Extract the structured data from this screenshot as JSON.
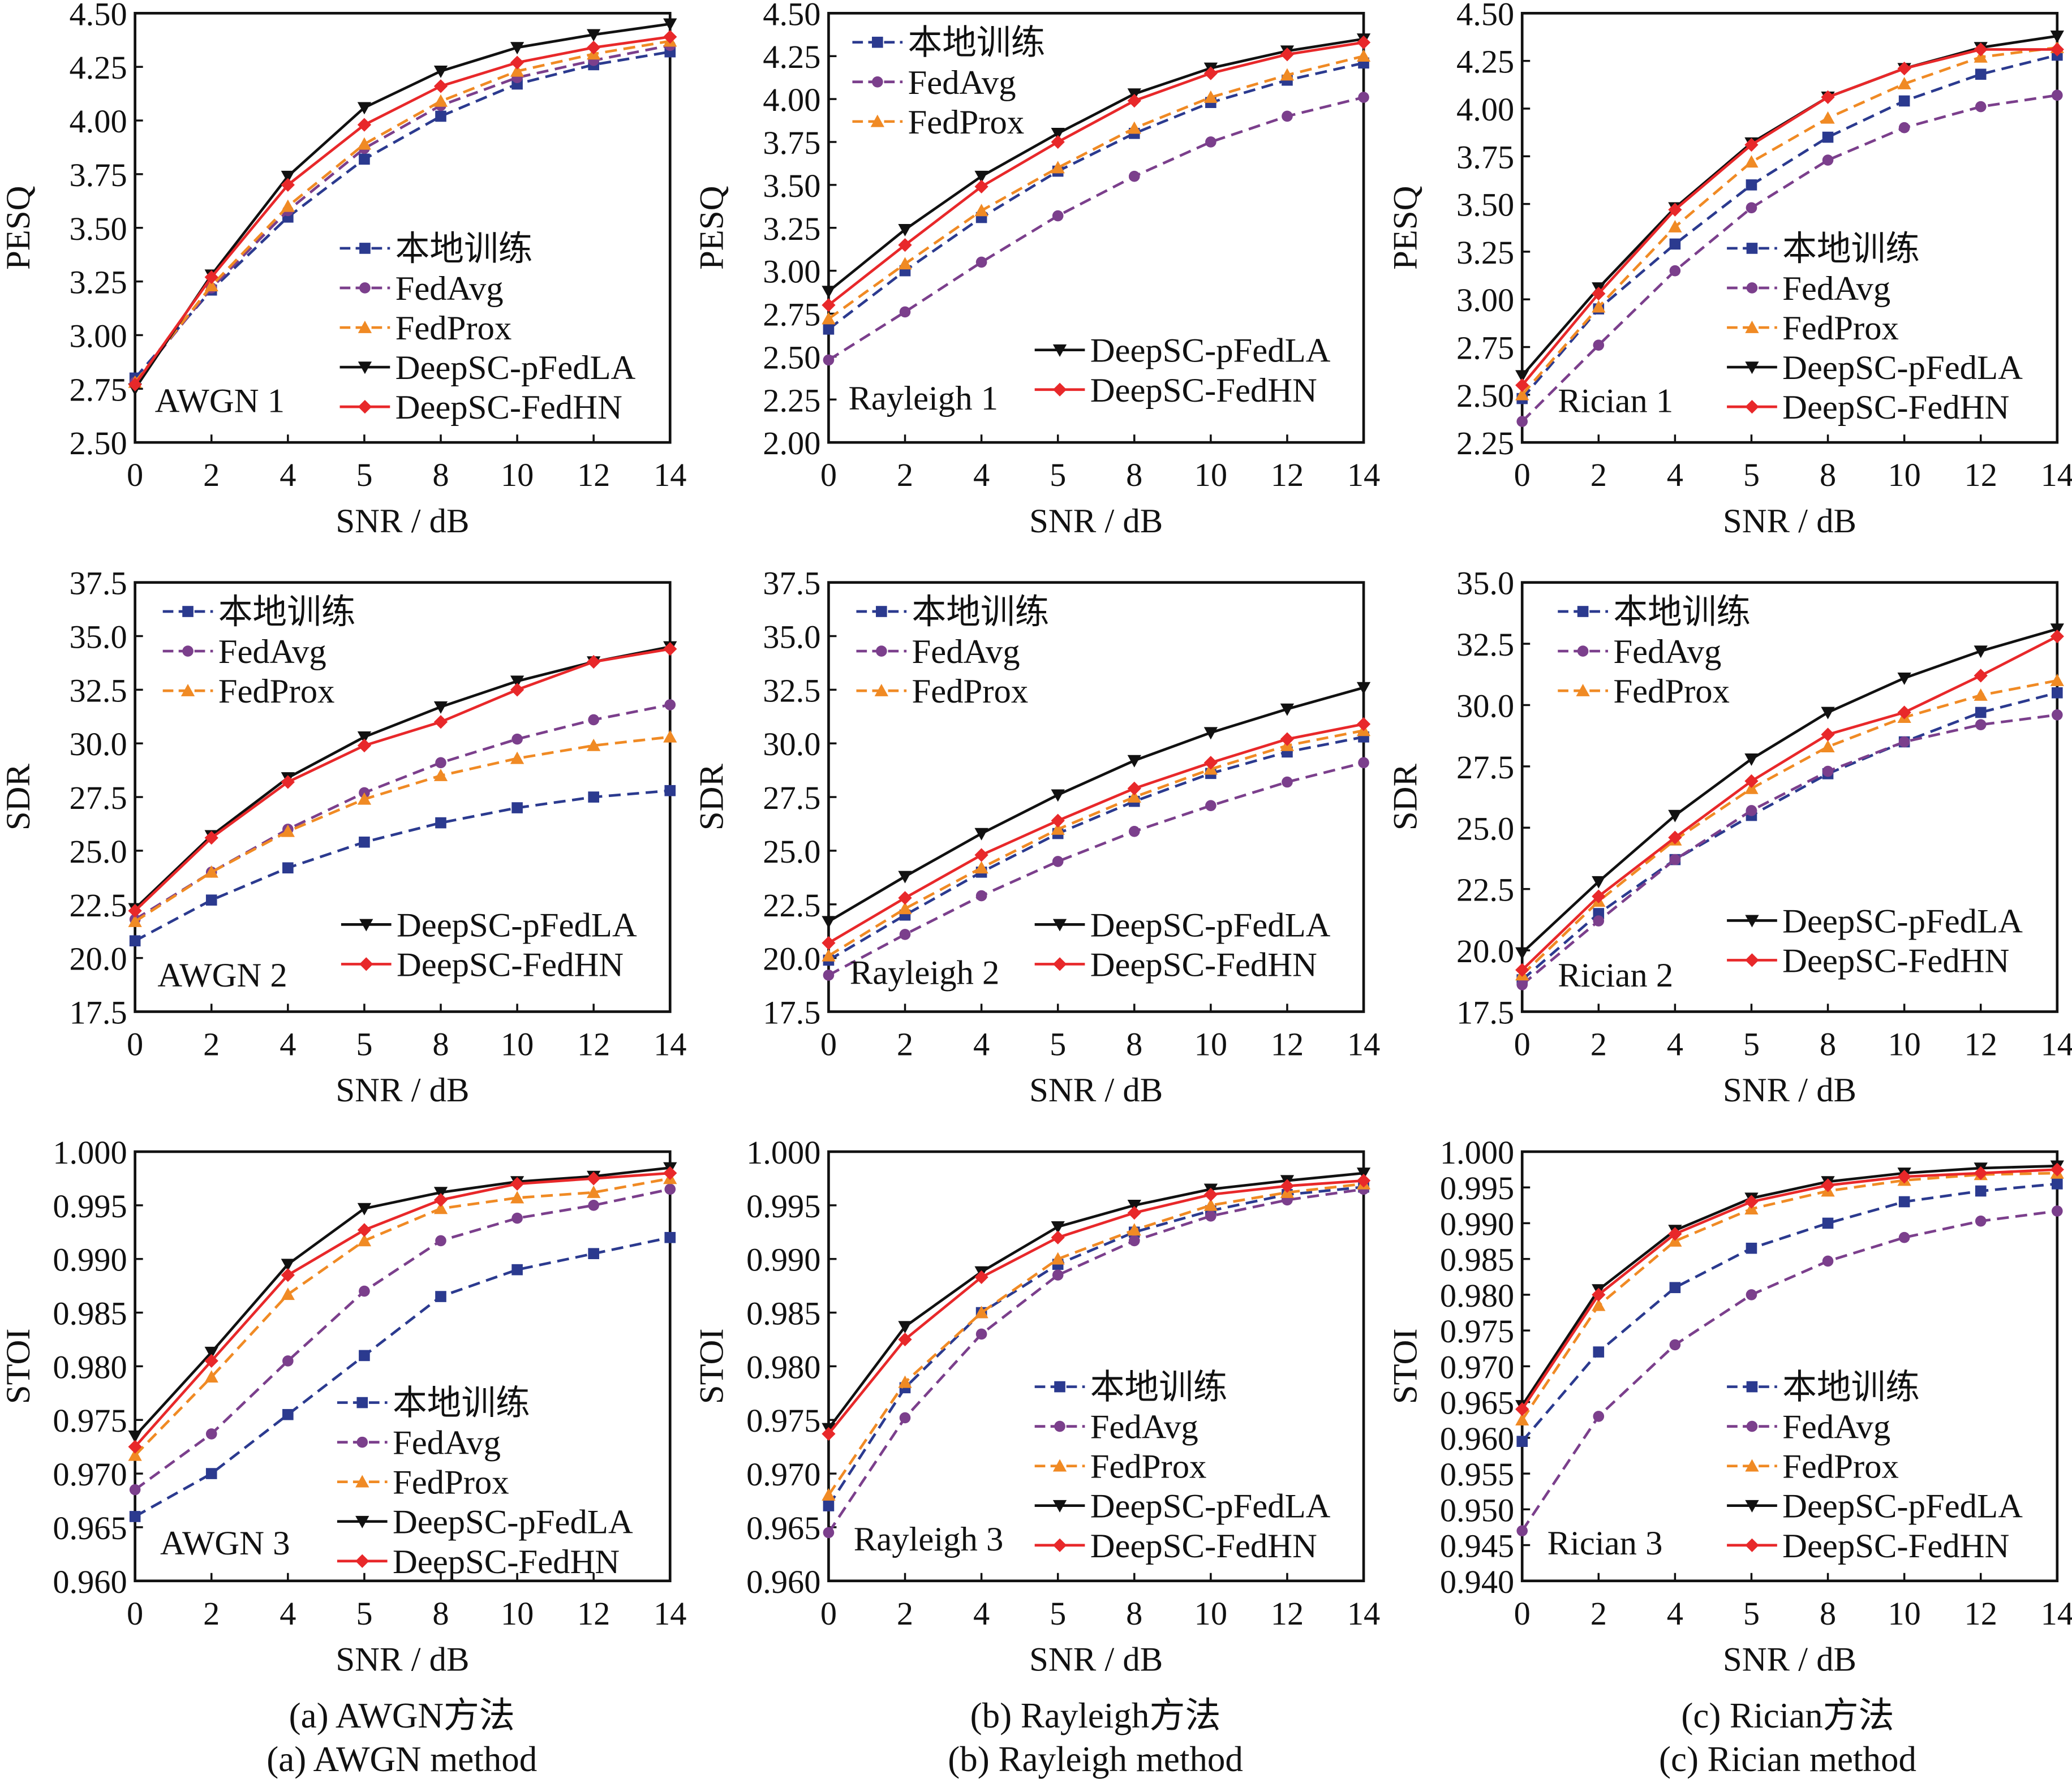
{
  "series_styles": [
    {
      "name": "本地训练",
      "color": "#2b3a8f",
      "dash": true,
      "marker": "square"
    },
    {
      "name": "FedAvg",
      "color": "#7b3f8c",
      "dash": true,
      "marker": "circle"
    },
    {
      "name": "FedProx",
      "color": "#f08a24",
      "dash": true,
      "marker": "triangle-up"
    },
    {
      "name": "DeepSC-pFedLA",
      "color": "#111111",
      "dash": false,
      "marker": "triangle-down"
    },
    {
      "name": "DeepSC-FedHN",
      "color": "#e8282a",
      "dash": false,
      "marker": "diamond"
    }
  ],
  "captions": [
    {
      "zh": "(a) AWGN方法",
      "en": "(a) AWGN  method"
    },
    {
      "zh": "(b) Rayleigh方法",
      "en": "(b) Rayleigh method"
    },
    {
      "zh": "(c) Rician方法",
      "en": "(c) Rician method"
    }
  ],
  "chart_data": [
    {
      "type": "line",
      "title": "AWGN 1",
      "xlabel": "SNR / dB",
      "ylabel": "PESQ",
      "categories": [
        "0",
        "2",
        "4",
        "5",
        "8",
        "10",
        "12",
        "14"
      ],
      "ylim": [
        2.5,
        4.5
      ],
      "yticks": [
        "2.50",
        "2.75",
        "3.00",
        "3.25",
        "3.50",
        "3.75",
        "4.00",
        "4.25",
        "4.50"
      ],
      "legend": "lower-right",
      "series": [
        {
          "name": "本地训练",
          "values": [
            2.8,
            3.21,
            3.55,
            3.82,
            4.02,
            4.17,
            4.26,
            4.32
          ]
        },
        {
          "name": "FedAvg",
          "values": [
            2.78,
            3.22,
            3.58,
            3.87,
            4.07,
            4.2,
            4.28,
            4.35
          ]
        },
        {
          "name": "FedProx",
          "values": [
            2.78,
            3.23,
            3.6,
            3.89,
            4.09,
            4.23,
            4.31,
            4.37
          ]
        },
        {
          "name": "DeepSC-pFedLA",
          "values": [
            2.75,
            3.28,
            3.74,
            4.06,
            4.23,
            4.34,
            4.4,
            4.45
          ]
        },
        {
          "name": "DeepSC-FedHN",
          "values": [
            2.77,
            3.27,
            3.7,
            3.98,
            4.16,
            4.27,
            4.34,
            4.39
          ]
        }
      ]
    },
    {
      "type": "line",
      "title": "Rayleigh 1",
      "xlabel": "SNR / dB",
      "ylabel": "PESQ",
      "categories": [
        "0",
        "2",
        "4",
        "5",
        "8",
        "10",
        "12",
        "14"
      ],
      "ylim": [
        2.0,
        4.5
      ],
      "yticks": [
        "2.00",
        "2.25",
        "2.50",
        "2.75",
        "3.00",
        "3.25",
        "3.50",
        "3.75",
        "4.00",
        "4.25",
        "4.50"
      ],
      "legend": "upper-left / lower-right",
      "series": [
        {
          "name": "本地训练",
          "values": [
            2.66,
            3.0,
            3.31,
            3.58,
            3.8,
            3.98,
            4.11,
            4.21
          ]
        },
        {
          "name": "FedAvg",
          "values": [
            2.48,
            2.76,
            3.05,
            3.32,
            3.55,
            3.75,
            3.9,
            4.01
          ]
        },
        {
          "name": "FedProx",
          "values": [
            2.72,
            3.04,
            3.35,
            3.6,
            3.83,
            4.01,
            4.14,
            4.25
          ]
        },
        {
          "name": "DeepSC-pFedLA",
          "values": [
            2.88,
            3.24,
            3.55,
            3.8,
            4.03,
            4.18,
            4.28,
            4.35
          ]
        },
        {
          "name": "DeepSC-FedHN",
          "values": [
            2.8,
            3.15,
            3.49,
            3.75,
            3.99,
            4.15,
            4.26,
            4.33
          ]
        }
      ]
    },
    {
      "type": "line",
      "title": "Rician 1",
      "xlabel": "SNR / dB",
      "ylabel": "PESQ",
      "categories": [
        "0",
        "2",
        "4",
        "5",
        "8",
        "10",
        "12",
        "14"
      ],
      "ylim": [
        2.25,
        4.5
      ],
      "yticks": [
        "2.25",
        "2.50",
        "2.75",
        "3.00",
        "3.25",
        "3.50",
        "3.75",
        "4.00",
        "4.25",
        "4.50"
      ],
      "legend": "lower-right",
      "series": [
        {
          "name": "本地训练",
          "values": [
            2.48,
            2.95,
            3.29,
            3.6,
            3.85,
            4.04,
            4.18,
            4.28
          ]
        },
        {
          "name": "FedAvg",
          "values": [
            2.36,
            2.76,
            3.15,
            3.48,
            3.73,
            3.9,
            4.01,
            4.07
          ]
        },
        {
          "name": "FedProx",
          "values": [
            2.5,
            2.96,
            3.38,
            3.72,
            3.95,
            4.13,
            4.27,
            4.32
          ]
        },
        {
          "name": "DeepSC-pFedLA",
          "values": [
            2.6,
            3.06,
            3.48,
            3.82,
            4.06,
            4.21,
            4.32,
            4.38
          ]
        },
        {
          "name": "DeepSC-FedHN",
          "values": [
            2.55,
            3.03,
            3.47,
            3.81,
            4.06,
            4.21,
            4.31,
            4.31
          ]
        }
      ]
    },
    {
      "type": "line",
      "title": "AWGN 2",
      "xlabel": "SNR / dB",
      "ylabel": "SDR",
      "categories": [
        "0",
        "2",
        "4",
        "5",
        "8",
        "10",
        "12",
        "14"
      ],
      "ylim": [
        17.5,
        37.5
      ],
      "yticks": [
        "17.5",
        "20.0",
        "22.5",
        "25.0",
        "27.5",
        "30.0",
        "32.5",
        "35.0",
        "37.5"
      ],
      "legend": "upper-left / lower-right",
      "series": [
        {
          "name": "本地训练",
          "values": [
            20.8,
            22.7,
            24.2,
            25.4,
            26.3,
            27.0,
            27.5,
            27.8
          ]
        },
        {
          "name": "FedAvg",
          "values": [
            21.8,
            24.0,
            26.0,
            27.7,
            29.1,
            30.2,
            31.1,
            31.8
          ]
        },
        {
          "name": "FedProx",
          "values": [
            21.7,
            24.0,
            25.9,
            27.4,
            28.5,
            29.3,
            29.9,
            30.3
          ]
        },
        {
          "name": "DeepSC-pFedLA",
          "values": [
            22.3,
            25.7,
            28.4,
            30.3,
            31.7,
            32.9,
            33.8,
            34.5
          ]
        },
        {
          "name": "DeepSC-FedHN",
          "values": [
            22.2,
            25.6,
            28.2,
            29.9,
            31.0,
            32.5,
            33.8,
            34.4
          ]
        }
      ]
    },
    {
      "type": "line",
      "title": "Rayleigh 2",
      "xlabel": "SNR / dB",
      "ylabel": "SDR",
      "categories": [
        "0",
        "2",
        "4",
        "5",
        "8",
        "10",
        "12",
        "14"
      ],
      "ylim": [
        17.5,
        37.5
      ],
      "yticks": [
        "17.5",
        "20.0",
        "22.5",
        "25.0",
        "27.5",
        "30.0",
        "32.5",
        "35.0",
        "37.5"
      ],
      "legend": "upper-left / lower-right",
      "series": [
        {
          "name": "本地训练",
          "values": [
            19.9,
            22.0,
            24.0,
            25.8,
            27.3,
            28.6,
            29.6,
            30.3
          ]
        },
        {
          "name": "FedAvg",
          "values": [
            19.2,
            21.1,
            22.9,
            24.5,
            25.9,
            27.1,
            28.2,
            29.1
          ]
        },
        {
          "name": "FedProx",
          "values": [
            20.1,
            22.3,
            24.2,
            26.0,
            27.5,
            28.8,
            29.9,
            30.6
          ]
        },
        {
          "name": "DeepSC-pFedLA",
          "values": [
            21.7,
            23.8,
            25.8,
            27.6,
            29.2,
            30.5,
            31.6,
            32.6
          ]
        },
        {
          "name": "DeepSC-FedHN",
          "values": [
            20.7,
            22.8,
            24.8,
            26.4,
            27.9,
            29.1,
            30.2,
            30.9
          ]
        }
      ]
    },
    {
      "type": "line",
      "title": "Rician 2",
      "xlabel": "SNR / dB",
      "ylabel": "SDR",
      "categories": [
        "0",
        "2",
        "4",
        "5",
        "8",
        "10",
        "12",
        "14"
      ],
      "ylim": [
        17.5,
        35.0
      ],
      "yticks": [
        "17.5",
        "20.0",
        "22.5",
        "25.0",
        "27.5",
        "30.0",
        "32.5",
        "35.0"
      ],
      "legend": "upper-left / lower-right",
      "series": [
        {
          "name": "本地训练",
          "values": [
            18.8,
            21.5,
            23.7,
            25.5,
            27.2,
            28.5,
            29.7,
            30.5
          ]
        },
        {
          "name": "FedAvg",
          "values": [
            18.6,
            21.2,
            23.7,
            25.7,
            27.3,
            28.5,
            29.2,
            29.6
          ]
        },
        {
          "name": "FedProx",
          "values": [
            19.0,
            22.0,
            24.5,
            26.6,
            28.3,
            29.5,
            30.4,
            31.0
          ]
        },
        {
          "name": "DeepSC-pFedLA",
          "values": [
            19.9,
            22.8,
            25.5,
            27.8,
            29.7,
            31.1,
            32.2,
            33.1
          ]
        },
        {
          "name": "DeepSC-FedHN",
          "values": [
            19.2,
            22.2,
            24.6,
            26.9,
            28.8,
            29.7,
            31.2,
            32.8
          ]
        }
      ]
    },
    {
      "type": "line",
      "title": "AWGN 3",
      "xlabel": "SNR / dB",
      "ylabel": "STOI",
      "categories": [
        "0",
        "2",
        "4",
        "5",
        "8",
        "10",
        "12",
        "14"
      ],
      "ylim": [
        0.96,
        1.0
      ],
      "yticks": [
        "0.960",
        "0.965",
        "0.970",
        "0.975",
        "0.980",
        "0.985",
        "0.990",
        "0.995",
        "1.000"
      ],
      "legend": "lower-right",
      "series": [
        {
          "name": "本地训练",
          "values": [
            0.966,
            0.97,
            0.9755,
            0.981,
            0.9865,
            0.989,
            0.9905,
            0.992
          ]
        },
        {
          "name": "FedAvg",
          "values": [
            0.9685,
            0.9737,
            0.9805,
            0.987,
            0.9917,
            0.9938,
            0.995,
            0.9965
          ]
        },
        {
          "name": "FedProx",
          "values": [
            0.9717,
            0.979,
            0.9867,
            0.9917,
            0.9947,
            0.9957,
            0.9962,
            0.9975
          ]
        },
        {
          "name": "DeepSC-pFedLA",
          "values": [
            0.9735,
            0.9813,
            0.9895,
            0.9947,
            0.9962,
            0.9972,
            0.9977,
            0.9985
          ]
        },
        {
          "name": "DeepSC-FedHN",
          "values": [
            0.9725,
            0.9805,
            0.9885,
            0.9927,
            0.9955,
            0.997,
            0.9975,
            0.998
          ]
        }
      ]
    },
    {
      "type": "line",
      "title": "Rayleigh 3",
      "xlabel": "SNR / dB",
      "ylabel": "STOI",
      "categories": [
        "0",
        "2",
        "4",
        "5",
        "8",
        "10",
        "12",
        "14"
      ],
      "ylim": [
        0.96,
        1.0
      ],
      "yticks": [
        "0.960",
        "0.965",
        "0.970",
        "0.975",
        "0.980",
        "0.985",
        "0.990",
        "0.995",
        "1.000"
      ],
      "legend": "lower-right",
      "series": [
        {
          "name": "本地训练",
          "values": [
            0.967,
            0.978,
            0.985,
            0.9895,
            0.9925,
            0.9945,
            0.996,
            0.9967
          ]
        },
        {
          "name": "FedAvg",
          "values": [
            0.9645,
            0.9752,
            0.983,
            0.9885,
            0.9917,
            0.994,
            0.9955,
            0.9965
          ]
        },
        {
          "name": "FedProx",
          "values": [
            0.968,
            0.9785,
            0.985,
            0.99,
            0.9927,
            0.995,
            0.9962,
            0.997
          ]
        },
        {
          "name": "DeepSC-pFedLA",
          "values": [
            0.9742,
            0.9837,
            0.9888,
            0.993,
            0.995,
            0.9965,
            0.9973,
            0.998
          ]
        },
        {
          "name": "DeepSC-FedHN",
          "values": [
            0.9737,
            0.9825,
            0.9883,
            0.992,
            0.9943,
            0.996,
            0.9968,
            0.9973
          ]
        }
      ]
    },
    {
      "type": "line",
      "title": "Rician 3",
      "xlabel": "SNR / dB",
      "ylabel": "STOI",
      "categories": [
        "0",
        "2",
        "4",
        "5",
        "8",
        "10",
        "12",
        "14"
      ],
      "ylim": [
        0.94,
        1.0
      ],
      "yticks": [
        "0.940",
        "0.945",
        "0.950",
        "0.955",
        "0.960",
        "0.965",
        "0.970",
        "0.975",
        "0.980",
        "0.985",
        "0.990",
        "0.995",
        "1.000"
      ],
      "legend": "lower-right",
      "series": [
        {
          "name": "本地训练",
          "values": [
            0.9595,
            0.972,
            0.981,
            0.9865,
            0.99,
            0.993,
            0.9945,
            0.9955
          ]
        },
        {
          "name": "FedAvg",
          "values": [
            0.947,
            0.963,
            0.973,
            0.98,
            0.9847,
            0.988,
            0.9903,
            0.9917
          ]
        },
        {
          "name": "FedProx",
          "values": [
            0.9625,
            0.9785,
            0.9875,
            0.992,
            0.9945,
            0.996,
            0.9968,
            0.997
          ]
        },
        {
          "name": "DeepSC-pFedLA",
          "values": [
            0.9645,
            0.9807,
            0.989,
            0.9935,
            0.9958,
            0.997,
            0.9977,
            0.998
          ]
        },
        {
          "name": "DeepSC-FedHN",
          "values": [
            0.964,
            0.98,
            0.9885,
            0.993,
            0.9953,
            0.9965,
            0.997,
            0.9975
          ]
        }
      ]
    }
  ]
}
